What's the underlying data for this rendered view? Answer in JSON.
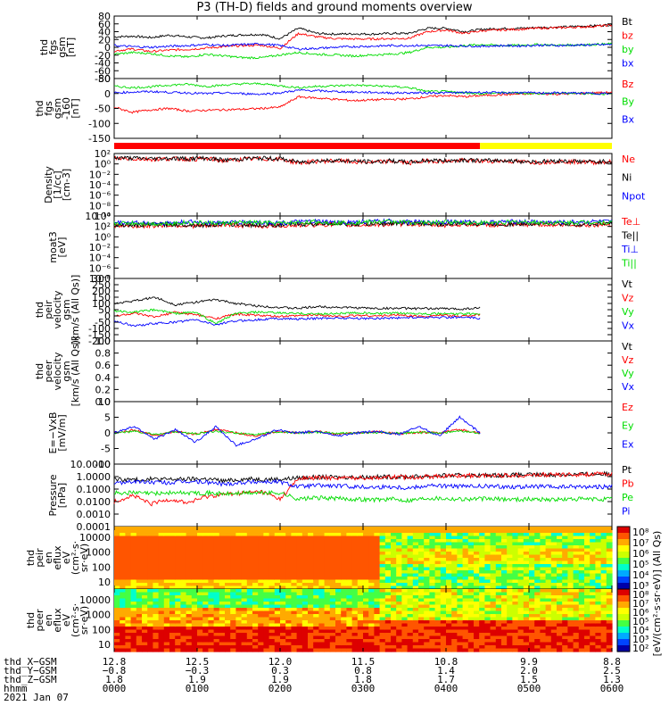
{
  "title": "P3 (TH-D) fields and ground moments overview",
  "colors": {
    "black": "#000000",
    "red": "#ff0000",
    "green": "#00dd00",
    "blue": "#0000ff",
    "yellow": "#ffff00"
  },
  "chart_data": [
    {
      "type": "line",
      "panel": "fgs",
      "ylabel": [
        "thd",
        "fgs",
        "gsm",
        "[nT]"
      ],
      "yticks": [
        "80",
        "60",
        "40",
        "20",
        "0",
        "-20",
        "-40",
        "-60",
        "-80"
      ],
      "ylim": [
        -90,
        90
      ],
      "series": [
        {
          "name": "Bt",
          "color": "#000000",
          "values": [
            30,
            32,
            28,
            35,
            30,
            27,
            33,
            36,
            37,
            25,
            55,
            40,
            38,
            39,
            38,
            40,
            40,
            55,
            55,
            45,
            52,
            54,
            55,
            57,
            58,
            60,
            62,
            65
          ]
        },
        {
          "name": "bz",
          "color": "#ff0000",
          "values": [
            -10,
            -5,
            -12,
            -8,
            -6,
            -2,
            2,
            5,
            6,
            -3,
            40,
            30,
            25,
            24,
            24,
            25,
            26,
            45,
            50,
            40,
            48,
            50,
            52,
            55,
            56,
            58,
            60,
            64
          ]
        },
        {
          "name": "by",
          "color": "#00dd00",
          "values": [
            -20,
            -15,
            -18,
            -25,
            -28,
            -20,
            -25,
            -30,
            -30,
            -22,
            -15,
            -20,
            -22,
            -25,
            -22,
            -20,
            -15,
            0,
            0,
            5,
            8,
            5,
            6,
            8,
            6,
            7,
            8,
            10
          ]
        },
        {
          "name": "bx",
          "color": "#0000ff",
          "values": [
            5,
            2,
            0,
            3,
            5,
            8,
            5,
            8,
            10,
            5,
            -5,
            -3,
            0,
            2,
            3,
            5,
            5,
            5,
            5,
            4,
            3,
            5,
            4,
            6,
            5,
            6,
            7,
            8
          ]
        }
      ]
    },
    {
      "type": "line",
      "panel": "fgs_gsm_flipped",
      "ylabel": [
        "thd",
        "fgs",
        "gsm",
        "-160",
        "[nT]"
      ],
      "yticks": [
        "50",
        "0",
        "-50",
        "-100",
        "-150"
      ],
      "ylim": [
        -180,
        50
      ],
      "series": [
        {
          "name": "Bz",
          "color": "#ff0000",
          "values": [
            -60,
            -80,
            -70,
            -65,
            -75,
            -72,
            -70,
            -68,
            -65,
            -60,
            -20,
            -25,
            -30,
            -35,
            -32,
            -30,
            -28,
            -20,
            -15,
            -20,
            -15,
            -12,
            -10,
            -8,
            -10,
            -8,
            -5,
            -3
          ]
        },
        {
          "name": "By",
          "color": "#00dd00",
          "values": [
            20,
            15,
            18,
            25,
            28,
            20,
            25,
            30,
            30,
            22,
            15,
            20,
            22,
            25,
            22,
            20,
            15,
            0,
            0,
            -5,
            -8,
            -5,
            -6,
            -8,
            -6,
            -7,
            -8,
            -10
          ]
        },
        {
          "name": "Bx",
          "color": "#0000ff",
          "values": [
            -5,
            -2,
            0,
            -3,
            -5,
            -8,
            -5,
            -8,
            -10,
            -5,
            5,
            3,
            0,
            -2,
            -3,
            -5,
            -5,
            -5,
            -5,
            -4,
            -3,
            -5,
            -4,
            -6,
            -5,
            -6,
            -7,
            -8
          ]
        }
      ]
    },
    {
      "type": "line",
      "panel": "density",
      "scale": "log",
      "ylabel": [
        "Density",
        "[1/cc]",
        "[cm-3]"
      ],
      "yticks": [
        "10²",
        "10⁰",
        "10⁻²",
        "10⁻⁴",
        "10⁻⁶",
        "10⁻⁸",
        "10⁻¹⁰"
      ],
      "ylim": [
        -10,
        2
      ],
      "series": [
        {
          "name": "Ne",
          "color": "#ff0000",
          "values": [
            1.1,
            1.0,
            0.9,
            1.0,
            0.9,
            1.0,
            0.6,
            0.9,
            1.0,
            0.9,
            0.2,
            0.5,
            0.6,
            0.4,
            0.3,
            0.5,
            0.2,
            0.6,
            0.5,
            0.7,
            0.5,
            0.6,
            0.4,
            0.3,
            0.5,
            0.4,
            0.3,
            0.4
          ]
        },
        {
          "name": "Ni",
          "color": "#000000",
          "values": [
            1.2,
            1.1,
            1.0,
            1.1,
            1.0,
            1.1,
            0.7,
            1.0,
            1.1,
            1.0,
            0.3,
            0.6,
            0.7,
            0.5,
            0.4,
            0.6,
            0.3,
            0.7,
            0.6,
            0.8,
            0.6,
            0.7,
            0.5,
            0.4,
            0.6,
            0.5,
            0.4,
            0.5
          ]
        },
        {
          "name": "Npot",
          "color": "#0000ff",
          "values": []
        }
      ]
    },
    {
      "type": "line",
      "panel": "temperature",
      "scale": "log",
      "ylabel": [
        "moat3",
        "[eV]"
      ],
      "yticks": [
        "10⁴",
        "10²",
        "10⁰",
        "10⁻²",
        "10⁻⁴",
        "10⁻⁶",
        "10⁻⁸"
      ],
      "ylim": [
        -9,
        4.5
      ],
      "series": [
        {
          "name": "Te⊥",
          "color": "#ff0000",
          "values": [
            2.4,
            2.3,
            2.4,
            2.5,
            2.4,
            2.3,
            2.6,
            2.4,
            2.3,
            2.4,
            2.5,
            2.6,
            2.7,
            2.5,
            2.6,
            2.7,
            2.8,
            2.6,
            2.5,
            2.7,
            2.6,
            2.5,
            2.6,
            2.7,
            2.6,
            2.5,
            2.6,
            2.7
          ]
        },
        {
          "name": "Te||",
          "color": "#000000",
          "values": [
            2.6,
            2.5,
            2.6,
            2.7,
            2.6,
            2.5,
            2.8,
            2.6,
            2.5,
            2.6,
            2.7,
            2.8,
            2.9,
            2.7,
            2.8,
            2.9,
            3.0,
            2.8,
            2.7,
            2.9,
            2.8,
            2.7,
            2.8,
            2.9,
            2.8,
            2.7,
            2.8,
            2.9
          ]
        },
        {
          "name": "Ti⊥",
          "color": "#0000ff",
          "values": [
            3.0,
            3.1,
            2.9,
            3.0,
            3.2,
            3.1,
            3.0,
            3.2,
            3.1,
            3.0,
            3.2,
            3.3,
            3.1,
            3.2,
            3.3,
            3.4,
            3.2,
            3.1,
            3.3,
            3.2,
            3.1,
            3.2,
            3.3,
            3.2,
            3.1,
            3.2,
            3.3,
            3.2
          ]
        },
        {
          "name": "Ti||",
          "color": "#00dd00",
          "values": [
            2.9,
            3.0,
            2.8,
            2.9,
            3.1,
            3.0,
            2.9,
            3.1,
            3.0,
            2.9,
            3.1,
            3.2,
            3.0,
            3.1,
            3.2,
            3.3,
            3.1,
            3.0,
            3.2,
            3.1,
            3.0,
            3.1,
            3.2,
            3.1,
            3.0,
            3.1,
            3.2,
            3.1
          ]
        }
      ]
    },
    {
      "type": "line",
      "panel": "ion_velocity",
      "ylabel": [
        "thd",
        "peir",
        "velocity",
        "gsm",
        "[km/s (All Qs)]"
      ],
      "yticks": [
        "300",
        "250",
        "200",
        "150",
        "100",
        "50",
        "0",
        "-50",
        "-100",
        "-150",
        "-200"
      ],
      "ylim": [
        -200,
        300
      ],
      "series": [
        {
          "name": "Vt",
          "color": "#000000",
          "values": [
            100,
            120,
            150,
            90,
            110,
            130,
            100,
            80,
            70,
            60,
            75,
            70,
            65,
            60,
            62,
            58,
            60,
            55,
            65
          ]
        },
        {
          "name": "Vz",
          "color": "#ff0000",
          "values": [
            0,
            20,
            -10,
            30,
            10,
            -20,
            15,
            5,
            -5,
            0,
            10,
            -5,
            5,
            0,
            8,
            -4,
            6,
            -2,
            10
          ]
        },
        {
          "name": "Vy",
          "color": "#00dd00",
          "values": [
            40,
            30,
            50,
            20,
            30,
            -60,
            20,
            30,
            25,
            20,
            15,
            20,
            25,
            18,
            22,
            20,
            18,
            15,
            20
          ]
        },
        {
          "name": "Vx",
          "color": "#0000ff",
          "values": [
            -40,
            -80,
            -60,
            -50,
            -30,
            -70,
            -40,
            -30,
            -20,
            -25,
            -20,
            -15,
            -20,
            -18,
            -15,
            -10,
            -12,
            -10,
            -20
          ]
        }
      ]
    },
    {
      "type": "line",
      "panel": "electron_velocity",
      "ylabel": [
        "thd",
        "peer",
        "velocity",
        "gsm",
        "[km/s (All Qs)]"
      ],
      "yticks": [
        "1.0",
        "0.8",
        "0.6",
        "0.4",
        "0.2",
        "0.0"
      ],
      "ylim": [
        0,
        1
      ],
      "series": [
        {
          "name": "Vt",
          "color": "#000000",
          "values": []
        },
        {
          "name": "Vz",
          "color": "#ff0000",
          "values": []
        },
        {
          "name": "Vy",
          "color": "#00dd00",
          "values": []
        },
        {
          "name": "Vx",
          "color": "#0000ff",
          "values": []
        }
      ]
    },
    {
      "type": "line",
      "panel": "efield",
      "ylabel": [
        "E=−VxB",
        "[mV/m]"
      ],
      "yticks": [
        "10",
        "5",
        "0",
        "-5",
        "-10"
      ],
      "ylim": [
        -10,
        10
      ],
      "series": [
        {
          "name": "Ez",
          "color": "#ff0000",
          "values": [
            0,
            1,
            -1,
            0.5,
            -0.5,
            1,
            0,
            -1,
            0.5,
            0,
            0.5,
            -0.5,
            0,
            0.3,
            -0.3,
            0.2,
            0,
            1,
            0
          ]
        },
        {
          "name": "Ey",
          "color": "#00dd00",
          "values": [
            0,
            0.5,
            -0.5,
            0.3,
            -0.3,
            0.5,
            0,
            -0.5,
            0.3,
            0,
            0.2,
            -0.2,
            0,
            0.1,
            -0.1,
            0.1,
            0,
            0.5,
            0
          ]
        },
        {
          "name": "Ex",
          "color": "#0000ff",
          "values": [
            0,
            2,
            -2,
            1,
            -3,
            2,
            -4,
            -2,
            1,
            0,
            0.5,
            -1,
            0,
            0.5,
            -0.5,
            2,
            -1,
            5,
            0
          ]
        }
      ]
    },
    {
      "type": "line",
      "panel": "pressure",
      "scale": "log",
      "ylabel": [
        "Pressure",
        "[nPa]"
      ],
      "yticks": [
        "10.0000",
        "1.0000",
        "0.1000",
        "0.0100",
        "0.0010",
        "0.0001"
      ],
      "ylim": [
        -4,
        1
      ],
      "series": [
        {
          "name": "Pt",
          "color": "#000000",
          "values": [
            -0.2,
            -0.25,
            -0.2,
            -0.22,
            -0.2,
            -0.18,
            -0.35,
            -0.2,
            -0.2,
            -0.22,
            -0.1,
            -0.05,
            -0.05,
            -0.04,
            -0.03,
            -0.02,
            -0.02,
            0.05,
            0.08,
            0.1,
            0.1,
            0.12,
            0.13,
            0.15,
            0.15,
            0.18,
            0.2,
            0.22
          ]
        },
        {
          "name": "Pb",
          "color": "#ff0000",
          "values": [
            -2.0,
            -1.5,
            -2.2,
            -1.8,
            -2.1,
            -1.6,
            -1.4,
            -1.3,
            -1.2,
            -1.8,
            -0.15,
            -0.1,
            -0.1,
            -0.1,
            -0.08,
            -0.05,
            -0.05,
            0.0,
            0.05,
            0.08,
            0.08,
            0.1,
            0.12,
            0.14,
            0.14,
            0.17,
            0.19,
            0.21
          ]
        },
        {
          "name": "Pe",
          "color": "#00dd00",
          "values": [
            -1.3,
            -1.3,
            -1.35,
            -1.3,
            -1.3,
            -1.3,
            -1.4,
            -1.32,
            -1.3,
            -1.3,
            -1.8,
            -1.7,
            -1.75,
            -1.8,
            -1.85,
            -1.8,
            -1.9,
            -1.7,
            -1.75,
            -1.8,
            -1.78,
            -1.8,
            -1.82,
            -1.8,
            -1.85,
            -1.8,
            -1.82,
            -1.8
          ]
        },
        {
          "name": "Pi",
          "color": "#0000ff",
          "values": [
            -0.5,
            -0.4,
            -0.45,
            -0.5,
            -0.4,
            -0.45,
            -0.6,
            -0.45,
            -0.4,
            -0.42,
            -0.8,
            -0.7,
            -0.75,
            -0.8,
            -0.85,
            -0.8,
            -0.9,
            -0.7,
            -0.75,
            -0.8,
            -0.78,
            -0.8,
            -0.82,
            -0.8,
            -0.85,
            -0.8,
            -0.82,
            -0.8
          ]
        }
      ]
    },
    {
      "type": "heatmap",
      "panel": "ion_spectrogram",
      "ylabel": [
        "thd",
        "peir",
        "en",
        "eflux",
        "eV",
        "(cm²·s·",
        "sr·eV)"
      ],
      "yticks": [
        "10000",
        "1000",
        "100",
        "10"
      ],
      "ylim": [
        10,
        20000
      ]
    },
    {
      "type": "heatmap",
      "panel": "electron_spectrogram",
      "ylabel": [
        "thd",
        "peer",
        "en",
        "eflux",
        "eV",
        "(cm²·s·",
        "sr·eV)"
      ],
      "yticks": [
        "10000",
        "1000",
        "100",
        "10"
      ],
      "ylim": [
        10,
        20000
      ]
    }
  ],
  "colorbar": {
    "ion_ticks": [
      "10⁸",
      "10⁷",
      "10⁶",
      "10⁵",
      "10⁴",
      "10³"
    ],
    "electron_ticks": [
      "10⁸",
      "10⁷",
      "10⁶",
      "10⁵",
      "10⁴",
      "10³",
      "10²"
    ],
    "label": "[eV/(cm²·s·sr·eV)] (All Qs)"
  },
  "x_axis": {
    "rows": [
      {
        "label": "thd_X−GSM",
        "values": [
          "12.8",
          "12.5",
          "12.0",
          "11.5",
          "10.8",
          "9.9",
          "8.8"
        ]
      },
      {
        "label": "thd_Y−GSM",
        "values": [
          "−0.8",
          "−0.3",
          "0.3",
          "0.8",
          "1.4",
          "2.0",
          "2.5"
        ]
      },
      {
        "label": "thd_Z−GSM",
        "values": [
          "1.8",
          "1.9",
          "1.9",
          "1.8",
          "1.7",
          "1.5",
          "1.3"
        ]
      },
      {
        "label": "hhmm",
        "values": [
          "0000",
          "0100",
          "0200",
          "0300",
          "0400",
          "0500",
          "0600"
        ]
      }
    ],
    "date": "2021 Jan 07"
  },
  "mode_bar": {
    "segments": [
      {
        "from": 0,
        "to": 0.735,
        "color": "#ff0000"
      },
      {
        "from": 0.735,
        "to": 1,
        "color": "#ffff00"
      }
    ]
  }
}
